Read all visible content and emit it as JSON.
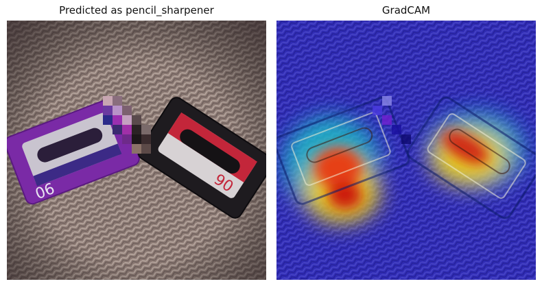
{
  "figure": {
    "left_title": "Predicted as pencil_sharpener",
    "right_title": "GradCAM"
  },
  "left_image": {
    "subject": "two cassette-shaped objects (purple and black/red) on a woven beige carpet with a pixelated patch between them",
    "cassette_left_label": "90",
    "cassette_right_label": "90",
    "colors": {
      "carpet": "#8f7d78",
      "purple": "#7a2aa6",
      "black": "#1e1b1f",
      "red": "#c3263a"
    }
  },
  "right_image": {
    "subject": "GradCAM heatmap overlay (jet colormap) on the same photo",
    "colors": {
      "low": "#2a2ad0",
      "mid": "#22c0c8",
      "high": "#e02010"
    }
  }
}
